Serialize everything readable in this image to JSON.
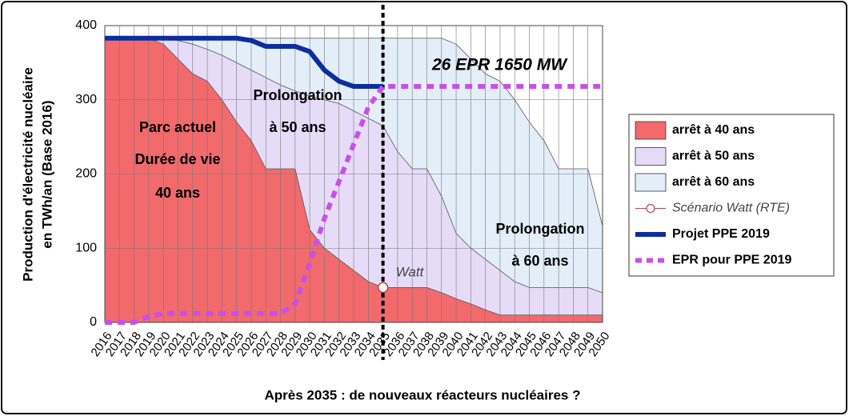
{
  "chart_data": {
    "type": "area",
    "y_label": [
      "Production d'électricité nucléaire",
      "en TWh/an (Base 2016)"
    ],
    "x_label": "Après 2035 : de nouveaux réacteurs nucléaires ?",
    "categories": [
      "2016",
      "2017",
      "2018",
      "2019",
      "2020",
      "2021",
      "2022",
      "2023",
      "2024",
      "2025",
      "2026",
      "2027",
      "2028",
      "2029",
      "2030",
      "2031",
      "2032",
      "2033",
      "2034",
      "2035",
      "2036",
      "2037",
      "2038",
      "2039",
      "2040",
      "2041",
      "2042",
      "2043",
      "2044",
      "2045",
      "2046",
      "2047",
      "2048",
      "2049",
      "2050"
    ],
    "ylim": [
      0,
      400
    ],
    "yticks": [
      0,
      100,
      200,
      300,
      400
    ],
    "grid": true,
    "vline": "2035",
    "series": [
      {
        "name": "arrêt à 40 ans",
        "type": "area",
        "color": "#f26a6c",
        "values": [
          383,
          383,
          383,
          383,
          375,
          355,
          335,
          325,
          300,
          270,
          245,
          207,
          207,
          207,
          125,
          100,
          85,
          70,
          55,
          47,
          47,
          47,
          47,
          40,
          32,
          25,
          17,
          10,
          10,
          10,
          10,
          10,
          10,
          10,
          10
        ]
      },
      {
        "name": "arrêt à 50 ans",
        "type": "area",
        "color": "#e6dcf8",
        "values": [
          383,
          383,
          383,
          383,
          383,
          380,
          375,
          368,
          360,
          350,
          340,
          330,
          320,
          312,
          305,
          300,
          295,
          285,
          275,
          265,
          230,
          207,
          207,
          170,
          120,
          100,
          85,
          70,
          55,
          47,
          47,
          47,
          47,
          47,
          40
        ]
      },
      {
        "name": "arrêt à 60 ans",
        "type": "area",
        "color": "#e4eef9",
        "values": [
          383,
          383,
          383,
          383,
          383,
          383,
          383,
          383,
          383,
          383,
          383,
          383,
          383,
          383,
          383,
          383,
          383,
          383,
          383,
          383,
          383,
          383,
          383,
          383,
          375,
          355,
          335,
          325,
          300,
          270,
          245,
          207,
          207,
          207,
          130
        ]
      },
      {
        "name": "Scénario Watt (RTE)",
        "type": "scatter",
        "color": "#b5494b",
        "values": [
          null,
          null,
          null,
          null,
          null,
          null,
          null,
          null,
          null,
          null,
          null,
          null,
          null,
          null,
          null,
          null,
          null,
          null,
          null,
          47,
          null,
          null,
          null,
          null,
          null,
          null,
          null,
          null,
          null,
          null,
          null,
          null,
          null,
          null,
          null
        ]
      },
      {
        "name": "Projet PPE 2019",
        "type": "line",
        "color": "#0b2e9e",
        "values": [
          383,
          383,
          383,
          383,
          383,
          383,
          383,
          383,
          383,
          383,
          380,
          372,
          372,
          372,
          365,
          340,
          325,
          318,
          318,
          318,
          null,
          null,
          null,
          null,
          null,
          null,
          null,
          null,
          null,
          null,
          null,
          null,
          null,
          null,
          null
        ]
      },
      {
        "name": "EPR pour PPE 2019",
        "type": "dashed",
        "color": "#c650ea",
        "values": [
          0,
          0,
          0,
          8,
          12,
          12,
          12,
          12,
          12,
          12,
          12,
          12,
          12,
          25,
          80,
          140,
          190,
          240,
          290,
          318,
          318,
          318,
          318,
          318,
          318,
          318,
          318,
          318,
          318,
          318,
          318,
          318,
          318,
          318,
          318
        ]
      }
    ],
    "annotations": [
      "Parc actuel",
      "Durée de vie",
      "40 ans",
      "Prolongation",
      "à 50 ans",
      "26 EPR 1650 MW",
      "Prolongation",
      "à 60 ans",
      "Watt"
    ]
  }
}
